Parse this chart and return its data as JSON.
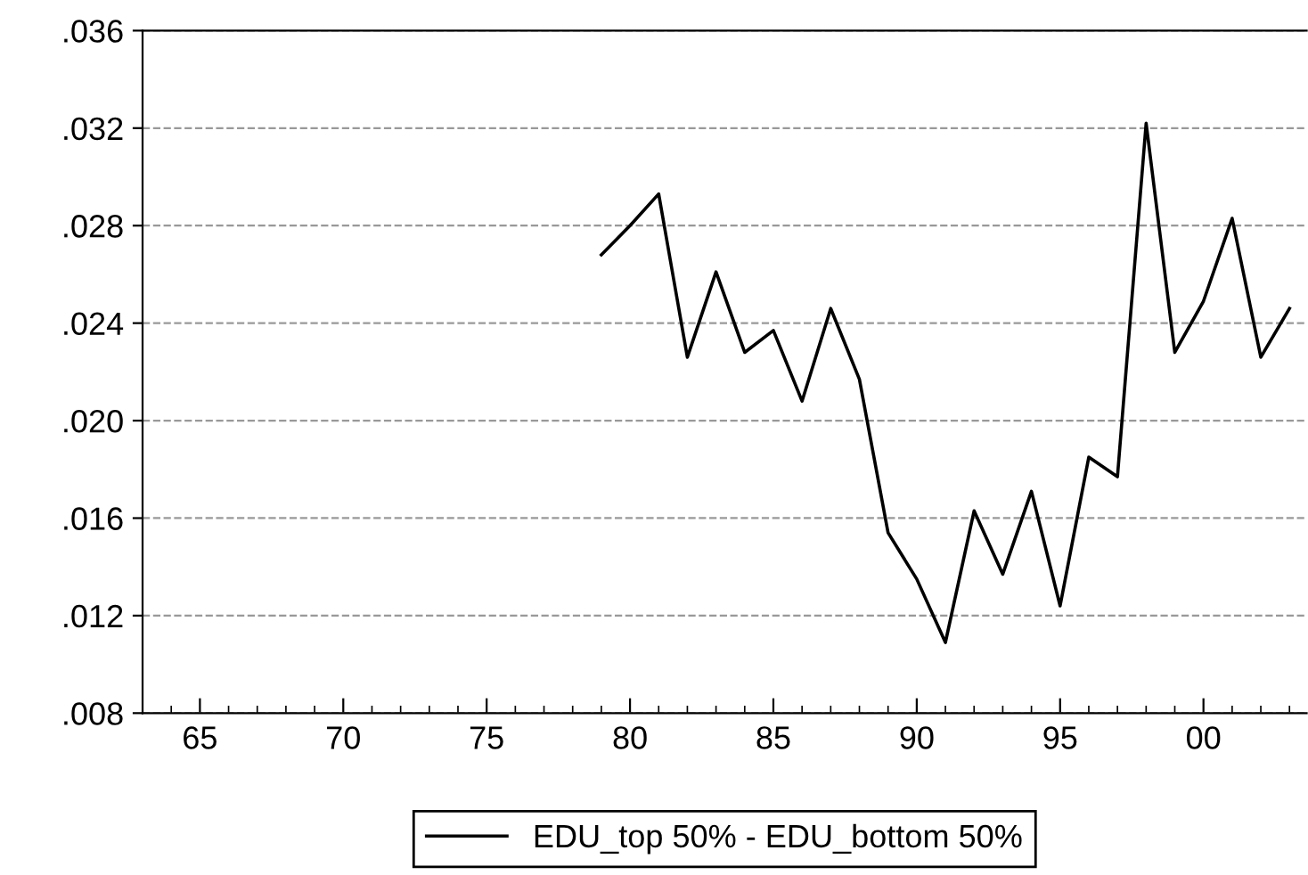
{
  "chart_data": {
    "type": "line",
    "x": [
      1979,
      1980,
      1981,
      1982,
      1983,
      1984,
      1985,
      1986,
      1987,
      1988,
      1989,
      1990,
      1991,
      1992,
      1993,
      1994,
      1995,
      1996,
      1997,
      1998,
      1999,
      2000,
      2001,
      2002,
      2003
    ],
    "series": [
      {
        "name": "EDU_top 50% - EDU_bottom 50%",
        "color": "#000000",
        "values": [
          0.0268,
          0.028,
          0.0293,
          0.0226,
          0.0261,
          0.0228,
          0.0237,
          0.0208,
          0.0246,
          0.0217,
          0.0154,
          0.0135,
          0.0109,
          0.0163,
          0.0137,
          0.0171,
          0.0124,
          0.0185,
          0.0177,
          0.0322,
          0.0228,
          0.0249,
          0.0283,
          0.0226,
          0.0246
        ]
      }
    ],
    "xlim": [
      1963,
      2003.6
    ],
    "xticks": [
      {
        "value": 1963,
        "label": null
      },
      {
        "value": 1964,
        "label": null
      },
      {
        "value": 1965,
        "label": "65"
      },
      {
        "value": 1966,
        "label": null
      },
      {
        "value": 1967,
        "label": null
      },
      {
        "value": 1968,
        "label": null
      },
      {
        "value": 1969,
        "label": null
      },
      {
        "value": 1970,
        "label": "70"
      },
      {
        "value": 1971,
        "label": null
      },
      {
        "value": 1972,
        "label": null
      },
      {
        "value": 1973,
        "label": null
      },
      {
        "value": 1974,
        "label": null
      },
      {
        "value": 1975,
        "label": "75"
      },
      {
        "value": 1976,
        "label": null
      },
      {
        "value": 1977,
        "label": null
      },
      {
        "value": 1978,
        "label": null
      },
      {
        "value": 1979,
        "label": null
      },
      {
        "value": 1980,
        "label": "80"
      },
      {
        "value": 1981,
        "label": null
      },
      {
        "value": 1982,
        "label": null
      },
      {
        "value": 1983,
        "label": null
      },
      {
        "value": 1984,
        "label": null
      },
      {
        "value": 1985,
        "label": "85"
      },
      {
        "value": 1986,
        "label": null
      },
      {
        "value": 1987,
        "label": null
      },
      {
        "value": 1988,
        "label": null
      },
      {
        "value": 1989,
        "label": null
      },
      {
        "value": 1990,
        "label": "90"
      },
      {
        "value": 1991,
        "label": null
      },
      {
        "value": 1992,
        "label": null
      },
      {
        "value": 1993,
        "label": null
      },
      {
        "value": 1994,
        "label": null
      },
      {
        "value": 1995,
        "label": "95"
      },
      {
        "value": 1996,
        "label": null
      },
      {
        "value": 1997,
        "label": null
      },
      {
        "value": 1998,
        "label": null
      },
      {
        "value": 1999,
        "label": null
      },
      {
        "value": 2000,
        "label": "00"
      },
      {
        "value": 2001,
        "label": null
      },
      {
        "value": 2002,
        "label": null
      },
      {
        "value": 2003,
        "label": null
      }
    ],
    "ylim": [
      0.008,
      0.036
    ],
    "yticks": [
      {
        "value": 0.008,
        "label": ".008"
      },
      {
        "value": 0.012,
        "label": ".012"
      },
      {
        "value": 0.016,
        "label": ".016"
      },
      {
        "value": 0.02,
        "label": ".020"
      },
      {
        "value": 0.024,
        "label": ".024"
      },
      {
        "value": 0.028,
        "label": ".028"
      },
      {
        "value": 0.032,
        "label": ".032"
      },
      {
        "value": 0.036,
        "label": ".036"
      }
    ],
    "grid": "y",
    "legend": "bottom",
    "marker": "none",
    "line_style": "solid"
  }
}
